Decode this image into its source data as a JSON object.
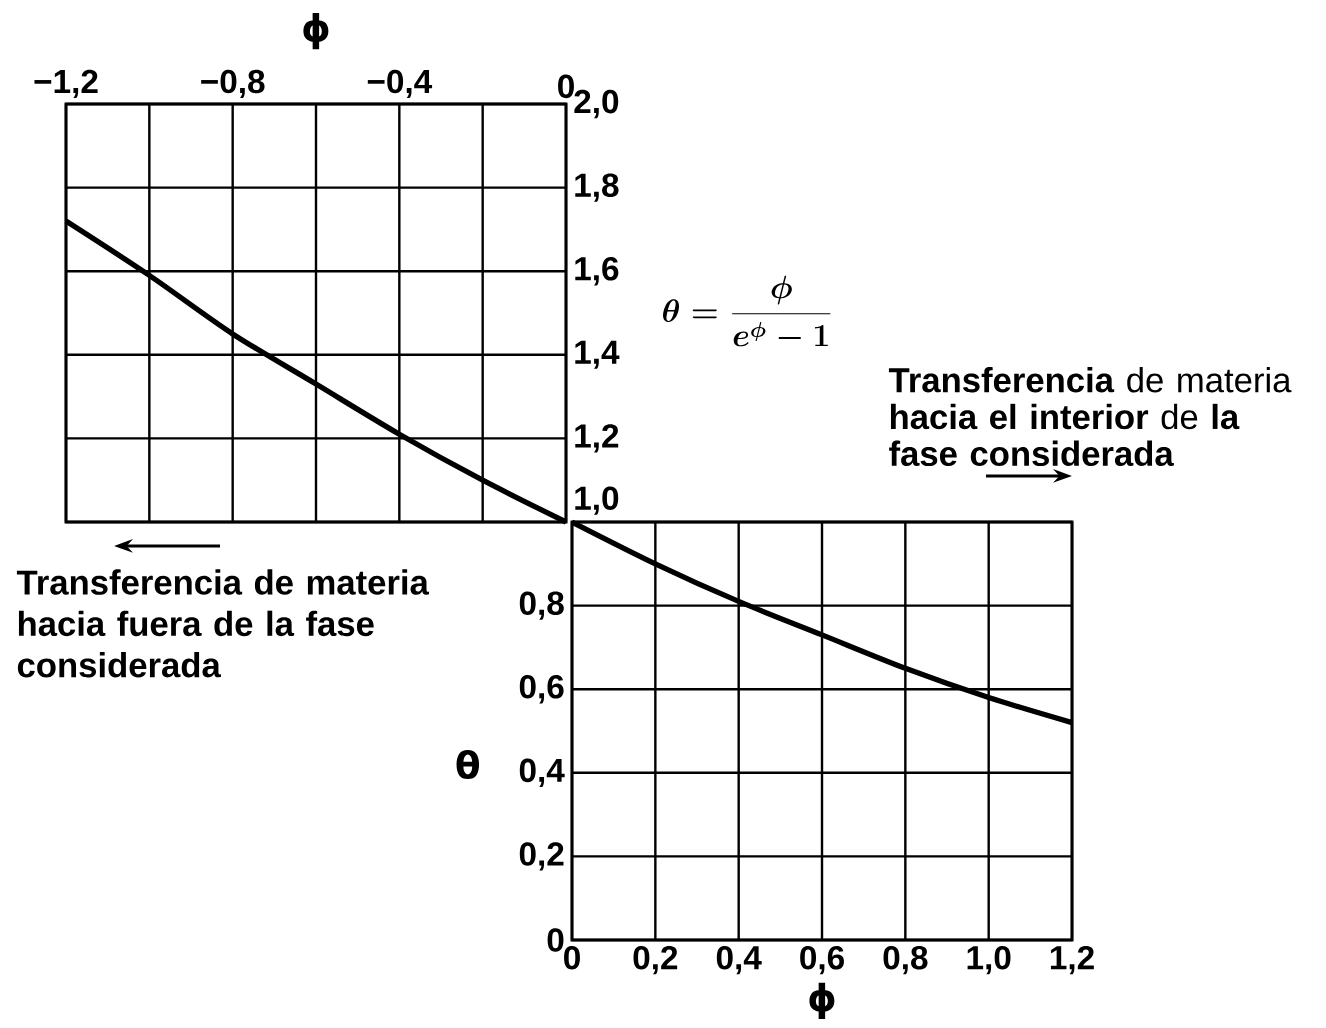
{
  "chart_data": [
    {
      "type": "line",
      "xlabel": "ϕ",
      "xlim": [
        -1.2,
        0
      ],
      "ylim": [
        1.0,
        2.0
      ],
      "xticks": [
        {
          "value": -1.2,
          "label": "−1,2"
        },
        {
          "value": -1.0,
          "label": null
        },
        {
          "value": -0.8,
          "label": "−0,8"
        },
        {
          "value": -0.6,
          "label": null
        },
        {
          "value": -0.4,
          "label": "−0,4"
        },
        {
          "value": -0.2,
          "label": null
        },
        0
      ],
      "yticks": [
        {
          "value": 1.0,
          "label": "1,0"
        },
        {
          "value": 1.2,
          "label": "1,2"
        },
        {
          "value": 1.4,
          "label": "1,4"
        },
        {
          "value": 1.6,
          "label": "1,6"
        },
        {
          "value": 1.8,
          "label": "1,8"
        },
        {
          "value": 2.0,
          "label": "2,0"
        }
      ],
      "grid": true,
      "color": "#000000",
      "x": [
        -1.2,
        -1.0,
        -0.8,
        -0.6,
        -0.4,
        -0.2,
        0
      ],
      "values": [
        1.72,
        1.59,
        1.45,
        1.33,
        1.21,
        1.1,
        1.0
      ],
      "annotations": [
        "\\theta = \\frac{\\phi}{e^{\\phi}-1}",
        "Transferencia de materia hacia fuera de la fase considerada"
      ]
    },
    {
      "type": "line",
      "xlabel": "ϕ",
      "ylabel": "θ",
      "xlim": [
        0,
        1.2
      ],
      "ylim": [
        0,
        1.0
      ],
      "xticks": [
        0,
        {
          "value": 0.2,
          "label": "0,2"
        },
        {
          "value": 0.4,
          "label": "0,4"
        },
        {
          "value": 0.6,
          "label": "0,6"
        },
        {
          "value": 0.8,
          "label": "0,8"
        },
        {
          "value": 1.0,
          "label": "1,0"
        },
        {
          "value": 1.2,
          "label": "1,2"
        }
      ],
      "yticks": [
        0,
        {
          "value": 0.2,
          "label": "0,2"
        },
        {
          "value": 0.4,
          "label": "0,4"
        },
        {
          "value": 0.6,
          "label": "0,6"
        },
        {
          "value": 0.8,
          "label": "0,8"
        },
        {
          "value": 1.0,
          "label": null
        }
      ],
      "grid": true,
      "color": "#000000",
      "x": [
        0,
        0.2,
        0.4,
        0.6,
        0.8,
        1.0,
        1.2
      ],
      "values": [
        1.0,
        0.9,
        0.81,
        0.73,
        0.65,
        0.58,
        0.52
      ],
      "annotations": [
        "**Transferencia** de materia **hacia el interior** de **la fase considerada**"
      ]
    }
  ]
}
